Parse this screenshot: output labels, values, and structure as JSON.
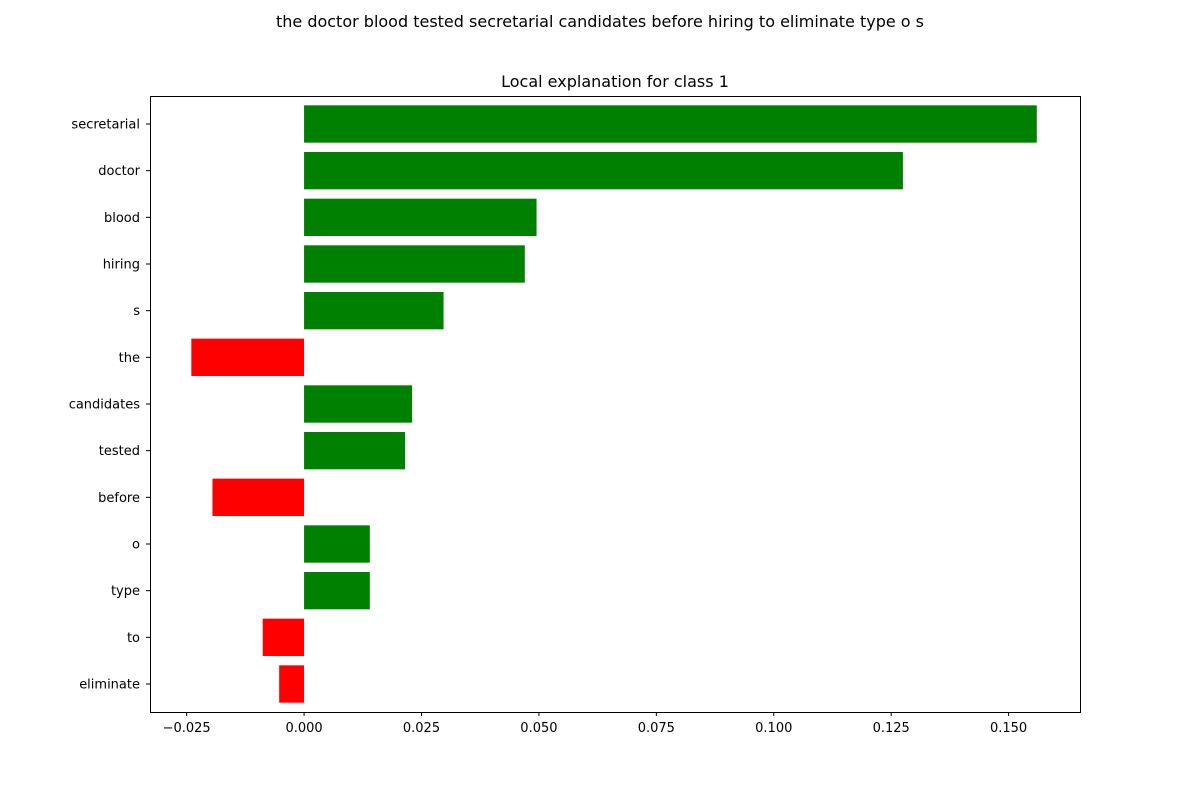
{
  "figure": {
    "suptitle": "the doctor blood tested secretarial candidates before hiring to eliminate type o s"
  },
  "chart_data": {
    "type": "bar",
    "orientation": "horizontal",
    "title": "Local explanation for class 1",
    "xlabel": "",
    "ylabel": "",
    "categories": [
      "secretarial",
      "doctor",
      "blood",
      "hiring",
      "s",
      "the",
      "candidates",
      "tested",
      "before",
      "o",
      "type",
      "to",
      "eliminate"
    ],
    "values": [
      0.156,
      0.1275,
      0.0495,
      0.047,
      0.0297,
      -0.024,
      0.023,
      0.0215,
      -0.0195,
      0.014,
      0.014,
      -0.0088,
      -0.0053
    ],
    "xlim": [
      -0.0328,
      0.1652
    ],
    "xticks": [
      -0.025,
      0.0,
      0.025,
      0.05,
      0.075,
      0.1,
      0.125,
      0.15
    ],
    "xtick_labels": [
      "−0.025",
      "0.000",
      "0.025",
      "0.050",
      "0.075",
      "0.100",
      "0.125",
      "0.150"
    ],
    "colors": {
      "positive": "#008000",
      "negative": "#ff0000"
    },
    "grid": false,
    "legend": "none"
  }
}
